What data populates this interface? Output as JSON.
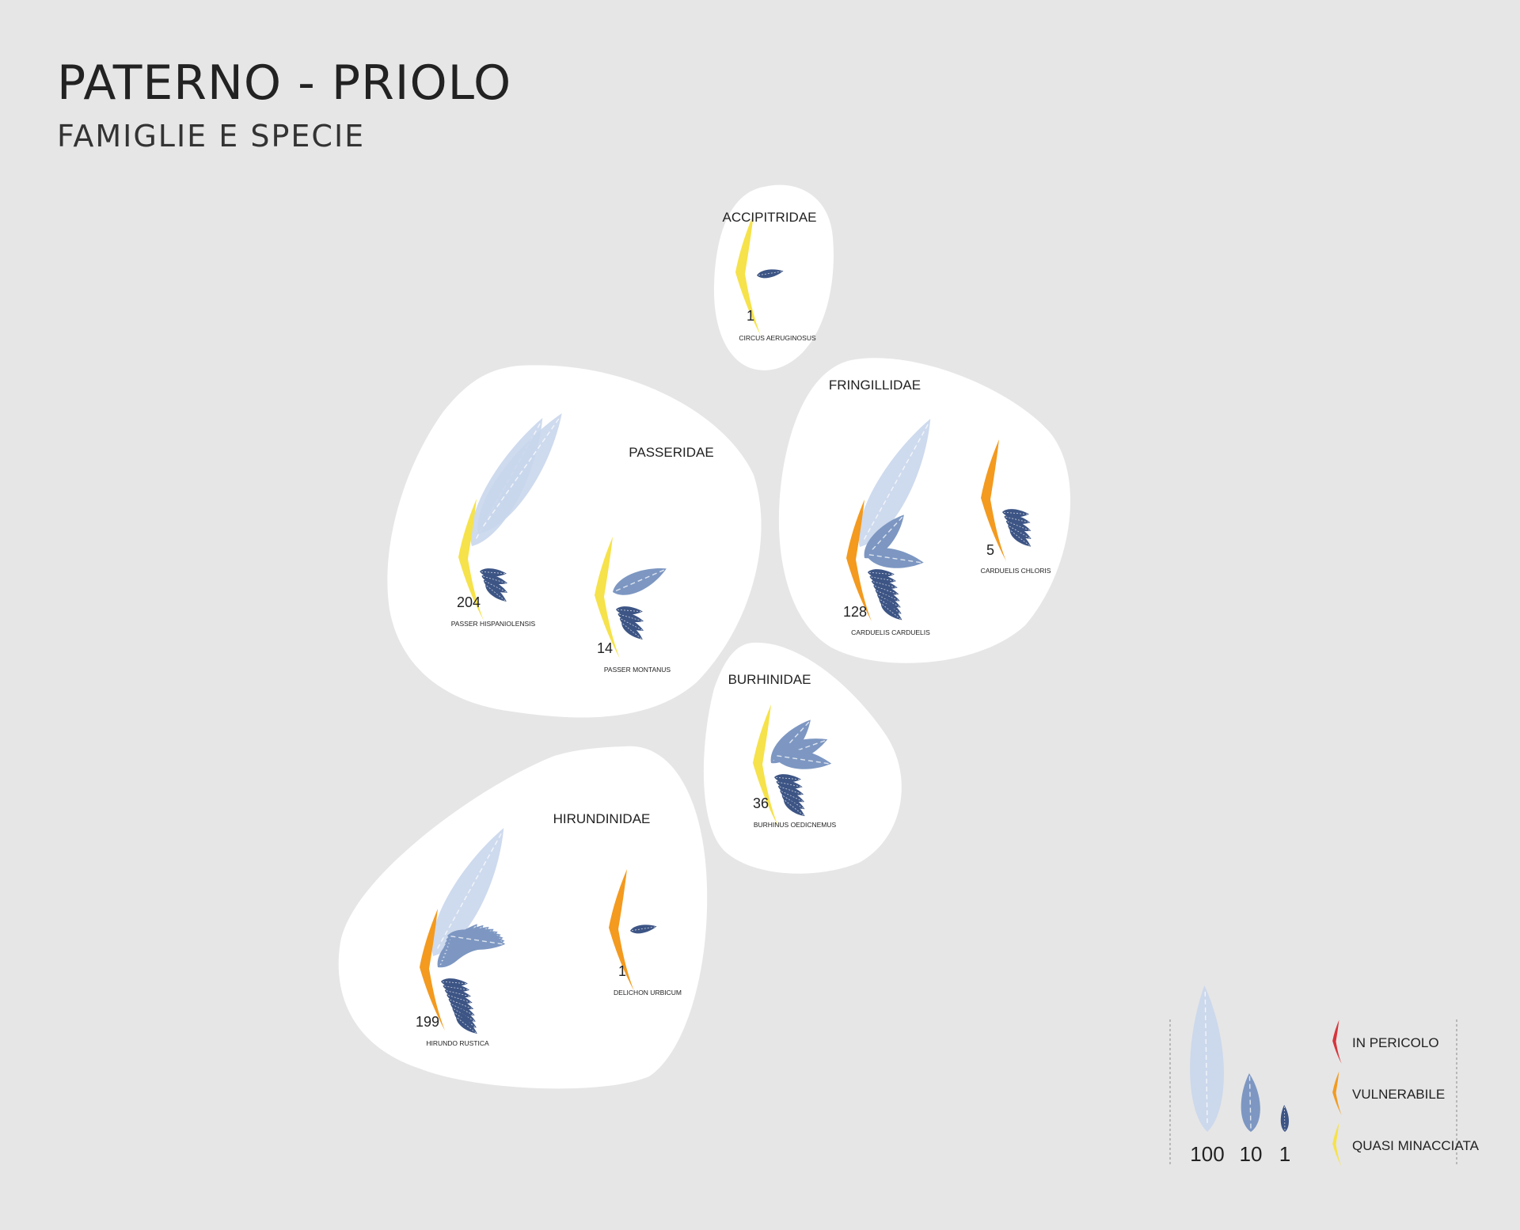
{
  "title": "PATERNO - PRIOLO",
  "subtitle": "FAMIGLIE E SPECIE",
  "colors": {
    "background": "#e6e6e6",
    "blob": "#ffffff",
    "feather_100": "#c9d6ec",
    "feather_10": "#7d97c2",
    "feather_1": "#3d5585",
    "in_pericolo": "#d8343b",
    "vulnerabile": "#f39a1f",
    "quasi_minacciata": "#f6e24a"
  },
  "families": [
    {
      "name": "ACCIPITRIDAE",
      "species": [
        {
          "name": "CIRCUS AERUGINOSUS",
          "count": 1,
          "count_label": "1",
          "status": "quasi_minacciata"
        }
      ]
    },
    {
      "name": "PASSERIDAE",
      "species": [
        {
          "name": "PASSER HISPANIOLENSIS",
          "count": 204,
          "count_label": "204",
          "status": "quasi_minacciata"
        },
        {
          "name": "PASSER MONTANUS",
          "count": 14,
          "count_label": "14",
          "status": "quasi_minacciata"
        }
      ]
    },
    {
      "name": "FRINGILLIDAE",
      "species": [
        {
          "name": "CARDUELIS CARDUELIS",
          "count": 128,
          "count_label": "128",
          "status": "vulnerabile"
        },
        {
          "name": "CARDUELIS CHLORIS",
          "count": 5,
          "count_label": "5",
          "status": "vulnerabile"
        }
      ]
    },
    {
      "name": "BURHINIDAE",
      "species": [
        {
          "name": "BURHINUS OEDICNEMUS",
          "count": 36,
          "count_label": "36",
          "status": "quasi_minacciata"
        }
      ]
    },
    {
      "name": "HIRUNDINIDAE",
      "species": [
        {
          "name": "HIRUNDO RUSTICA",
          "count": 199,
          "count_label": "199",
          "status": "vulnerabile"
        },
        {
          "name": "DELICHON URBICUM",
          "count": 1,
          "count_label": "1",
          "status": "vulnerabile"
        }
      ]
    }
  ],
  "legend": {
    "sizes": [
      {
        "label": "100",
        "value": 100
      },
      {
        "label": "10",
        "value": 10
      },
      {
        "label": "1",
        "value": 1
      }
    ],
    "statuses": [
      {
        "key": "in_pericolo",
        "label": "IN PERICOLO"
      },
      {
        "key": "vulnerabile",
        "label": "VULNERABILE"
      },
      {
        "key": "quasi_minacciata",
        "label": "QUASI MINACCIATA"
      }
    ]
  }
}
